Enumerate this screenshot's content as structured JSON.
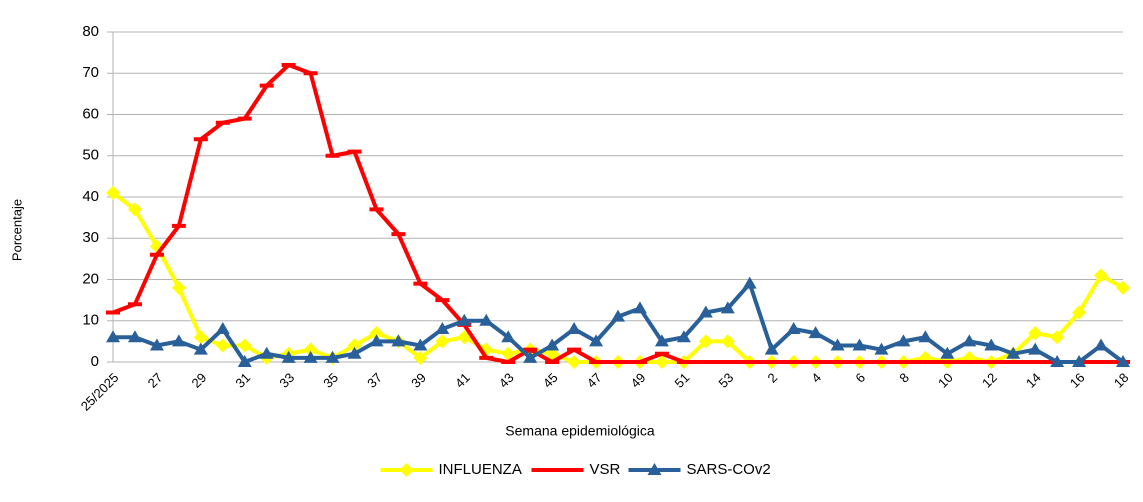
{
  "chart_data": {
    "type": "line",
    "x_label": "Semana epidemiológica",
    "y_label": "Porcentaje",
    "categories": [
      "25/2025",
      null,
      "27",
      null,
      "29",
      null,
      "31",
      null,
      "33",
      null,
      "35",
      null,
      "37",
      null,
      "39",
      null,
      "41",
      null,
      "43",
      null,
      "45",
      null,
      "47",
      null,
      "49",
      null,
      "51",
      null,
      "53",
      null,
      "2",
      null,
      "4",
      null,
      "6",
      null,
      "8",
      null,
      "10",
      null,
      "12",
      null,
      "14",
      null,
      "16",
      null,
      "18"
    ],
    "series": [
      {
        "name": "INFLUENZA",
        "color": "#ffff00",
        "marker": "diamond",
        "values": [
          41,
          37,
          28,
          18,
          6,
          4,
          4,
          1,
          2,
          3,
          1,
          4,
          7,
          5,
          1,
          5,
          6,
          3,
          2,
          3,
          2,
          0,
          0,
          0,
          0,
          0,
          0,
          5,
          5,
          0,
          0,
          0,
          0,
          0,
          0,
          0,
          0,
          1,
          0,
          1,
          0,
          2,
          7,
          6,
          12,
          21,
          18
        ]
      },
      {
        "name": "VSR",
        "color": "#ff0000",
        "marker": "dash",
        "values": [
          12,
          14,
          26,
          33,
          54,
          58,
          59,
          67,
          72,
          70,
          50,
          51,
          37,
          31,
          19,
          15,
          9,
          1,
          0,
          3,
          0,
          3,
          0,
          0,
          0,
          2,
          0,
          0,
          0,
          0,
          0,
          0,
          0,
          0,
          0,
          0,
          0,
          0,
          0,
          0,
          0,
          0,
          0,
          0,
          0,
          0,
          0
        ]
      },
      {
        "name": "SARS-COv2",
        "color": "#2a6099",
        "marker": "triangle",
        "values": [
          6,
          6,
          4,
          5,
          3,
          8,
          0,
          2,
          1,
          1,
          1,
          2,
          5,
          5,
          4,
          8,
          10,
          10,
          6,
          1,
          4,
          8,
          5,
          11,
          13,
          5,
          6,
          12,
          13,
          19,
          3,
          8,
          7,
          4,
          4,
          3,
          5,
          6,
          2,
          5,
          4,
          2,
          3,
          0,
          0,
          4,
          0
        ]
      }
    ],
    "ylim": [
      0,
      80
    ],
    "yticks": [
      0,
      10,
      20,
      30,
      40,
      50,
      60,
      70,
      80
    ],
    "grid": true,
    "legend": "bottom"
  }
}
